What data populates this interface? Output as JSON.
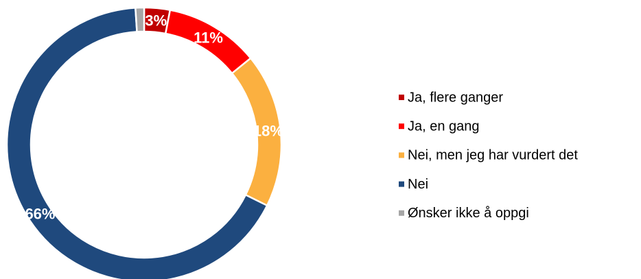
{
  "chart_data": {
    "type": "donut",
    "categories": [
      "Ja, flere ganger",
      "Ja, en gang",
      "Nei, men jeg har vurdert det",
      "Nei",
      "Ønsker ikke å oppgi"
    ],
    "values": [
      3,
      11,
      18,
      66,
      1
    ],
    "value_labels": [
      "3%",
      "11%",
      "18%",
      "66%",
      null
    ],
    "colors": [
      "#c00000",
      "#ff0000",
      "#fbb040",
      "#1f497d",
      "#a6a6a6"
    ],
    "legend": "right"
  }
}
